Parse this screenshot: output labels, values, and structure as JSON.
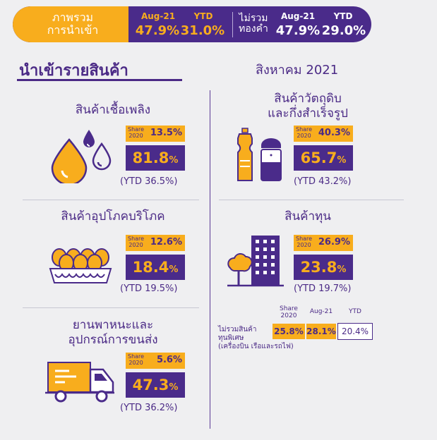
{
  "summary": {
    "total_label_1": "ภาพรวม",
    "total_label_2": "การนำเข้า",
    "aug_head": "Aug-21",
    "ytd_head": "YTD",
    "total_aug": "47.9%",
    "total_ytd": "31.0%",
    "excl_label_1": "ไม่รวม",
    "excl_label_2": "ทองคำ",
    "excl_aug": "47.9%",
    "excl_ytd": "29.0%"
  },
  "headline": "นำเข้ารายสินค้า",
  "month": "สิงหาคม 2021",
  "share_label_1": "Share",
  "share_label_2": "2020",
  "sections": {
    "fuel": {
      "title": "สินค้าเชื้อเพลิง",
      "share": "13.5%",
      "value": "81.8",
      "ytd": "(YTD 36.5%)"
    },
    "raw": {
      "title_1": "สินค้าวัตถุดิบ",
      "title_2": "และกึ่งสำเร็จรูป",
      "share": "40.3%",
      "value": "65.7",
      "ytd": "(YTD 43.2%)"
    },
    "consumer": {
      "title": "สินค้าอุปโภคบริโภค",
      "share": "12.6%",
      "value": "18.4",
      "ytd": "(YTD 19.5%)"
    },
    "capital": {
      "title": "สินค้าทุน",
      "share": "26.9%",
      "value": "23.8",
      "ytd": "(YTD 19.7%)"
    },
    "vehicle": {
      "title_1": "ยานพาหนะและ",
      "title_2": "อุปกรณ์การขนส่ง",
      "share": "5.6%",
      "value": "47.3",
      "ytd": "(YTD 36.2%)"
    }
  },
  "percent_sign": "%",
  "excluded": {
    "head_share_1": "Share",
    "head_share_2": "2020",
    "head_aug": "Aug-21",
    "head_ytd": "YTD",
    "share": "25.8%",
    "aug": "28.1%",
    "ytd": "20.4%",
    "note_1": "ไม่รวมสินค้า",
    "note_2": "ทุนพิเศษ",
    "note_3": "(เครื่องบิน เรือและรถไฟ)"
  },
  "colors": {
    "purple": "#4a2b8a",
    "orange": "#f8ad1d",
    "background": "#efeff1"
  }
}
